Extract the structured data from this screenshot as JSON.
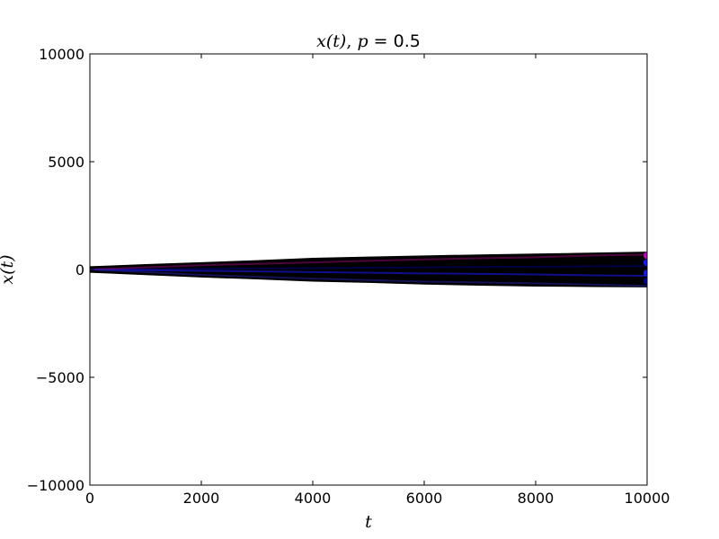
{
  "chart_data": {
    "type": "line",
    "title": {
      "prefix": "x(t)",
      "separator": ", ",
      "param": "p",
      "equals": " = ",
      "value": "0.5"
    },
    "xlabel": "t",
    "ylabel": "x(t)",
    "xlim": [
      0,
      10000
    ],
    "ylim": [
      -10000,
      10000
    ],
    "xticks": [
      0,
      2000,
      4000,
      6000,
      8000,
      10000
    ],
    "yticks": [
      -10000,
      -5000,
      0,
      5000,
      10000
    ],
    "xtick_labels": [
      "0",
      "2000",
      "4000",
      "6000",
      "8000",
      "10000"
    ],
    "ytick_labels": [
      "−10000",
      "−5000",
      "0",
      "5000",
      "10000"
    ],
    "grid": false,
    "band": {
      "x": [
        0,
        1000,
        2000,
        3000,
        4000,
        5000,
        6000,
        7000,
        8000,
        9000,
        10000
      ],
      "upper": [
        150,
        250,
        340,
        430,
        540,
        600,
        650,
        700,
        740,
        780,
        830
      ],
      "lower": [
        -150,
        -260,
        -370,
        -460,
        -560,
        -620,
        -700,
        -750,
        -790,
        -810,
        -830
      ]
    },
    "highlight_series": [
      {
        "color": "#000080",
        "x": [
          0,
          2000,
          4000,
          6000,
          8000,
          9000,
          10000
        ],
        "y": [
          0,
          30,
          60,
          100,
          130,
          150,
          160
        ]
      },
      {
        "color": "#1a1aff",
        "x": [
          0,
          2000,
          4000,
          6000,
          8000,
          9000,
          10000
        ],
        "y": [
          0,
          -60,
          -120,
          -180,
          -230,
          -270,
          -290
        ]
      },
      {
        "color": "#8b0a6e",
        "x": [
          0,
          2000,
          4000,
          6000,
          8000,
          9000,
          10000
        ],
        "y": [
          0,
          200,
          330,
          470,
          570,
          650,
          690
        ]
      },
      {
        "color": "#20209a",
        "x": [
          0,
          2000,
          4000,
          6000,
          8000,
          9000,
          10000
        ],
        "y": [
          0,
          -250,
          -420,
          -560,
          -640,
          -700,
          -760
        ]
      }
    ],
    "end_markers": [
      {
        "color": "#c000c0",
        "x": 10000,
        "y": 650
      },
      {
        "color": "#1a1aff",
        "x": 10000,
        "y": 320
      },
      {
        "color": "#1a1aff",
        "x": 10000,
        "y": -160
      },
      {
        "color": "#0000a0",
        "x": 10000,
        "y": -540
      }
    ],
    "colors": {
      "band": "#000000",
      "axes": "#000000",
      "background": "#ffffff"
    }
  }
}
